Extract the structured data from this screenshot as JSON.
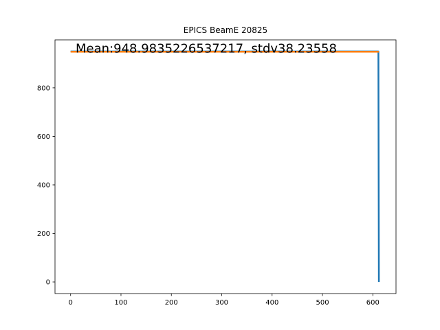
{
  "chart_data": {
    "type": "line",
    "title": "EPICS BeamE 20825",
    "xlabel": "",
    "ylabel": "",
    "xlim": [
      -31,
      646
    ],
    "ylim": [
      -48,
      998
    ],
    "x_ticks": [
      {
        "value": 0,
        "label": "0"
      },
      {
        "value": 100,
        "label": "100"
      },
      {
        "value": 200,
        "label": "200"
      },
      {
        "value": 300,
        "label": "300"
      },
      {
        "value": 400,
        "label": "400"
      },
      {
        "value": 500,
        "label": "500"
      },
      {
        "value": 600,
        "label": "600"
      }
    ],
    "y_ticks": [
      {
        "value": 0,
        "label": "0"
      },
      {
        "value": 200,
        "label": "200"
      },
      {
        "value": 400,
        "label": "400"
      },
      {
        "value": 600,
        "label": "600"
      },
      {
        "value": 800,
        "label": "800"
      }
    ],
    "grid": false,
    "series": [
      {
        "color": "#1f77b4",
        "x": [
          0,
          100,
          200,
          300,
          400,
          500,
          600,
          610,
          611,
          612
        ],
        "y": [
          950,
          950,
          950,
          950,
          950,
          950,
          950,
          950,
          950,
          0
        ]
      },
      {
        "color": "#ff7f0e",
        "x": [
          0,
          612
        ],
        "y": [
          948.98,
          948.98
        ]
      }
    ],
    "annotations": [
      {
        "text": "Mean:948.9835226537217, stdv38.23558",
        "x": 10,
        "y": 948.98
      }
    ]
  }
}
